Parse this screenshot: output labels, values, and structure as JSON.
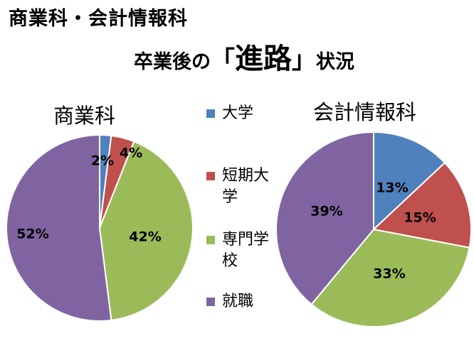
{
  "title": {
    "line1": "商業科・会計情報科",
    "line2_pre": "卒業後の",
    "open_bracket": "「",
    "line2_em": "進路",
    "close_bracket": "」",
    "line2_post": "状況"
  },
  "chart_data": [
    {
      "type": "pie",
      "title": "商業科",
      "categories": [
        "大学",
        "短期大学",
        "専門学校",
        "就職"
      ],
      "values": [
        2,
        4,
        42,
        52
      ],
      "labels": [
        "2%",
        "4%",
        "42%",
        "52%"
      ],
      "colors": [
        "#4F81BD",
        "#C0504D",
        "#9BBB59",
        "#8064A2"
      ]
    },
    {
      "type": "pie",
      "title": "会計情報科",
      "categories": [
        "大学",
        "短期大学",
        "専門学校",
        "就職"
      ],
      "values": [
        13,
        15,
        33,
        39
      ],
      "labels": [
        "13%",
        "15%",
        "33%",
        "39%"
      ],
      "colors": [
        "#4F81BD",
        "#C0504D",
        "#9BBB59",
        "#8064A2"
      ]
    }
  ],
  "legend": [
    {
      "label": "大学",
      "color": "#4F81BD"
    },
    {
      "label": "短期大学",
      "color": "#C0504D"
    },
    {
      "label": "専門学校",
      "color": "#9BBB59"
    },
    {
      "label": "就職",
      "color": "#8064A2"
    }
  ]
}
